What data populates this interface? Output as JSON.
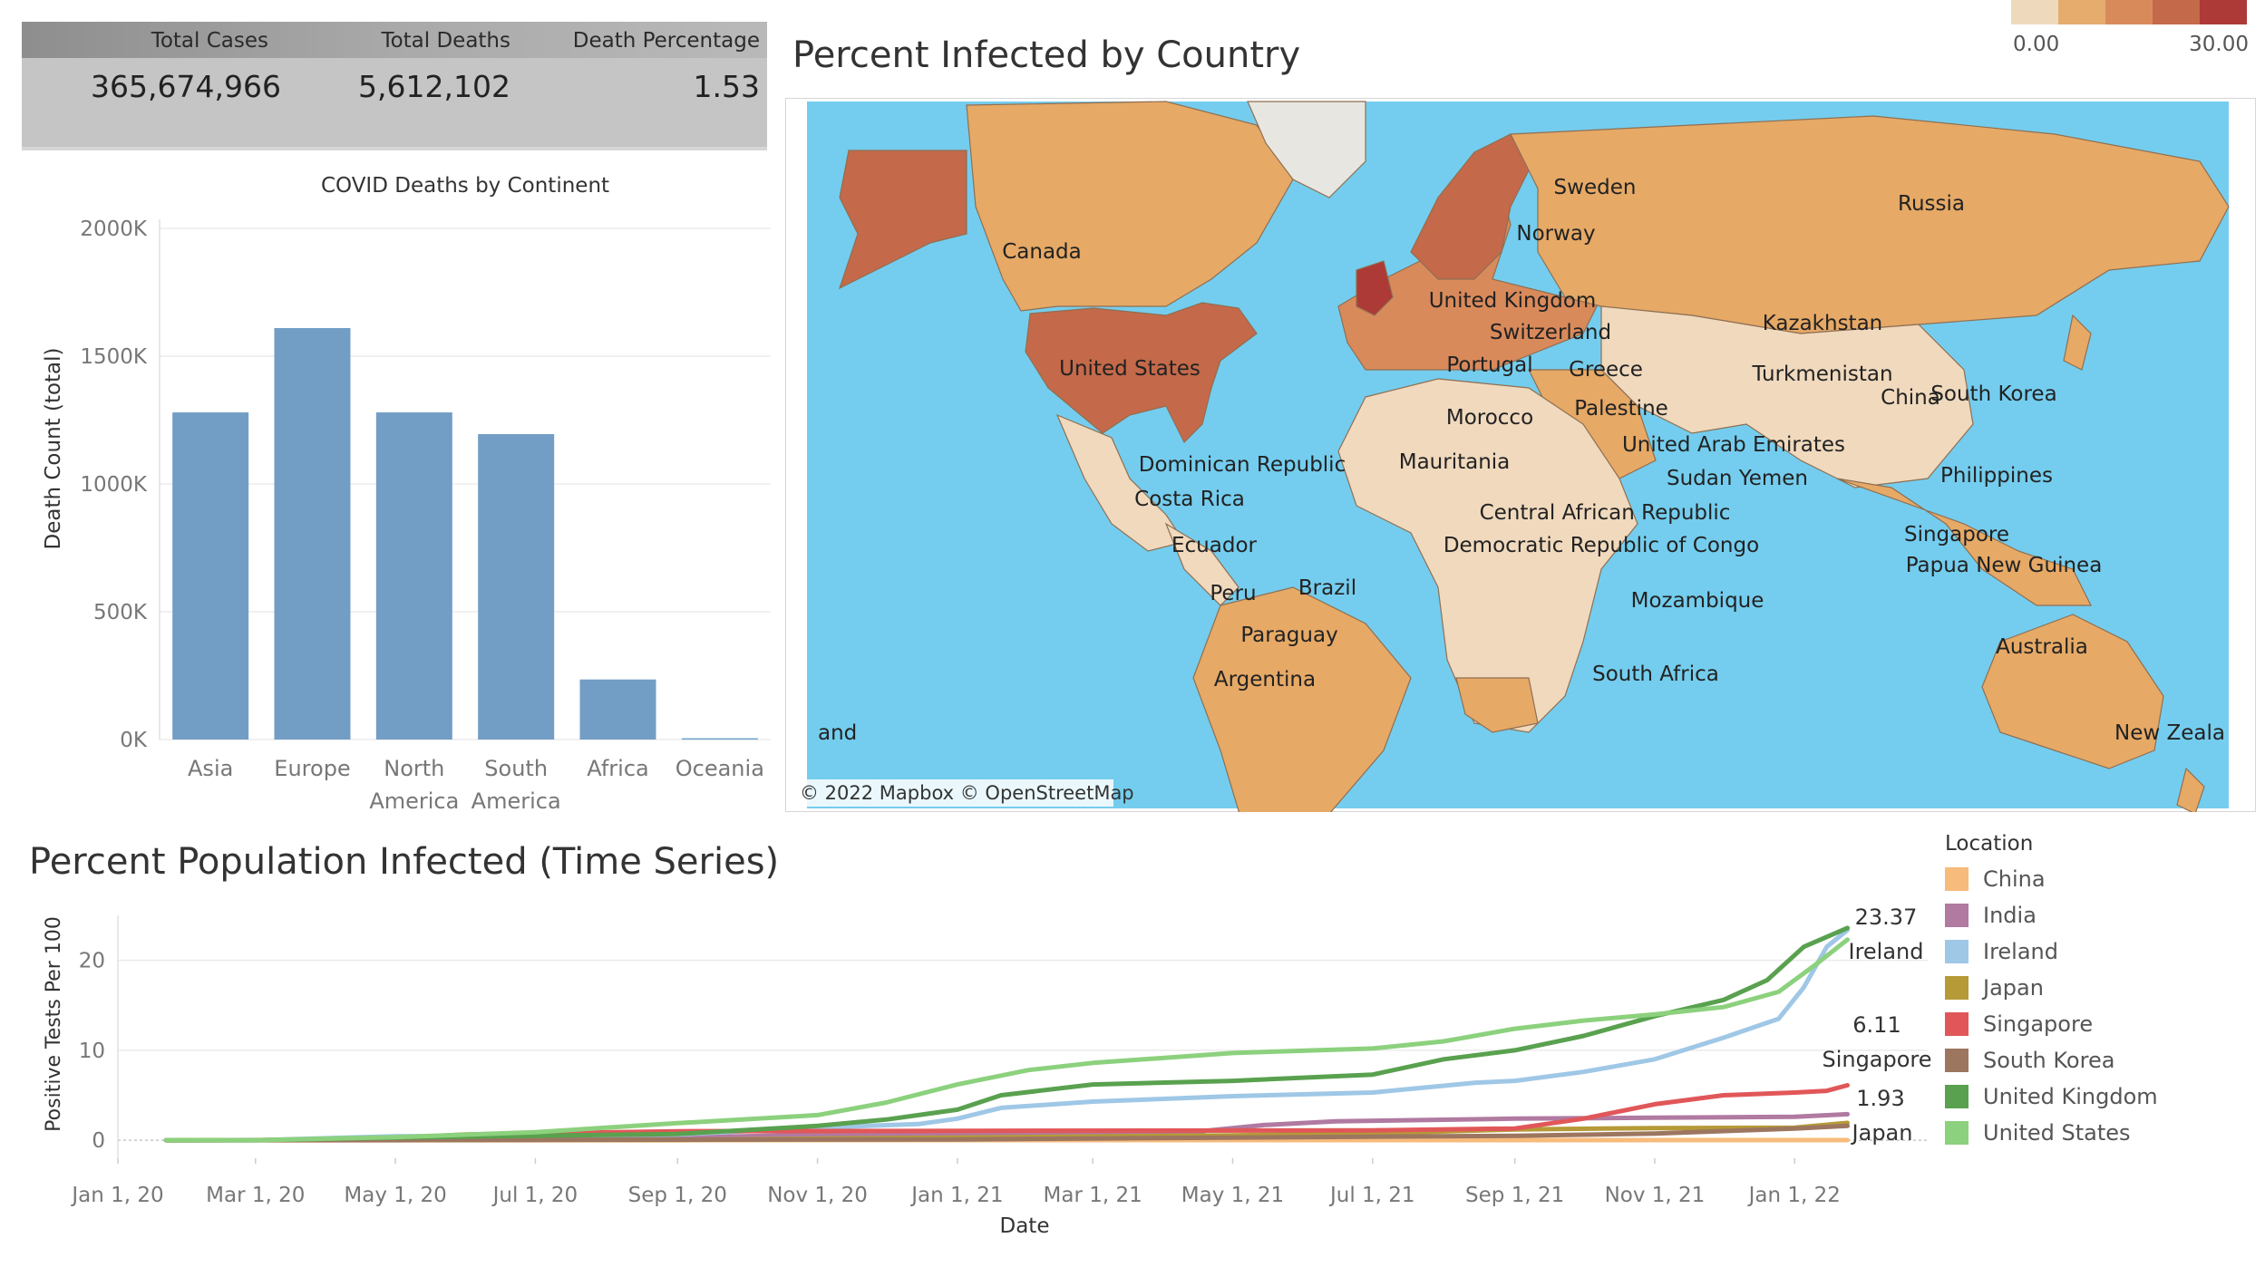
{
  "kpi": {
    "headers": [
      "Total Cases",
      "Total Deaths",
      "Death Percentage"
    ],
    "values": [
      "365,674,966",
      "5,612,102",
      "1.53"
    ]
  },
  "bar_chart_title": "COVID Deaths by Continent",
  "map": {
    "title": "Percent Infected by Country",
    "credit": "© 2022 Mapbox © OpenStreetMap",
    "scale_min": "0.00",
    "scale_max": "30.00",
    "scale_colors": [
      "#efd9bd",
      "#e5ac6e",
      "#d98a5b",
      "#c4694a",
      "#ad3a36"
    ],
    "labels": [
      "Canada",
      "United States",
      "Russia",
      "Sweden",
      "Norway",
      "United Kingdom",
      "Switzerland",
      "Kazakhstan",
      "Portugal",
      "Greece",
      "Turkmenistan",
      "China",
      "South Korea",
      "Morocco",
      "Palestine",
      "United Arab Emirates",
      "Mauritania",
      "Sudan Yemen",
      "Philippines",
      "Dominican Republic",
      "Costa Rica",
      "Central African Republic",
      "Democratic Republic of Congo",
      "Singapore",
      "Ecuador",
      "Papua New Guinea",
      "Peru",
      "Brazil",
      "Mozambique",
      "Paraguay",
      "Australia",
      "Argentina",
      "South Africa",
      "and",
      "New Zeala"
    ]
  },
  "timeseries": {
    "title": "Percent Population Infected (Time Series)",
    "legend_title": "Location",
    "end_labels": [
      {
        "value": "23.37",
        "name": "Ireland"
      },
      {
        "value": "6.11",
        "name": "Singapore"
      },
      {
        "value": "1.93",
        "name": "Japan"
      }
    ]
  },
  "chart_data": [
    {
      "type": "bar",
      "title": "COVID Deaths by Continent",
      "xlabel": "",
      "ylabel": "Death Count (total)",
      "categories": [
        [
          "Asia"
        ],
        [
          "Europe"
        ],
        [
          "North",
          "America"
        ],
        [
          "South",
          "America"
        ],
        [
          "Africa"
        ],
        [
          "Oceania"
        ]
      ],
      "values": [
        1280000,
        1610000,
        1280000,
        1195000,
        235000,
        5000
      ],
      "ylim": [
        0,
        2000000
      ],
      "yticks": [
        0,
        500000,
        1000000,
        1500000,
        2000000
      ],
      "ytick_labels": [
        "0K",
        "500K",
        "1000K",
        "1500K",
        "2000K"
      ],
      "color": "#729ec6",
      "grid": true
    },
    {
      "type": "line",
      "title": "Percent Population Infected (Time Series)",
      "xlabel": "Date",
      "ylabel": "Positive Tests Per 100",
      "xlim": [
        "2020-01-01",
        "2022-02-28"
      ],
      "ylim": [
        -2,
        25
      ],
      "yticks": [
        0,
        10,
        20
      ],
      "x_ticks": [
        "2020-01-01",
        "2020-03-01",
        "2020-05-01",
        "2020-07-01",
        "2020-09-01",
        "2020-11-01",
        "2021-01-01",
        "2021-03-01",
        "2021-05-01",
        "2021-07-01",
        "2021-09-01",
        "2021-11-01",
        "2022-01-01"
      ],
      "x_tick_labels": [
        "Jan 1, 20",
        "Mar 1, 20",
        "May 1, 20",
        "Jul 1, 20",
        "Sep 1, 20",
        "Nov 1, 20",
        "Jan 1, 21",
        "Mar 1, 21",
        "May 1, 21",
        "Jul 1, 21",
        "Sep 1, 21",
        "Nov 1, 21",
        "Jan 1, 22"
      ],
      "legend": "right",
      "series": [
        {
          "name": "China",
          "color": "#f7bb7b",
          "points": [
            [
              "2020-01-22",
              0.0
            ],
            [
              "2022-01-24",
              0.01
            ]
          ]
        },
        {
          "name": "India",
          "color": "#b07aa1",
          "points": [
            [
              "2020-01-22",
              0
            ],
            [
              "2020-05-01",
              0.0
            ],
            [
              "2020-07-01",
              0.05
            ],
            [
              "2020-09-01",
              0.3
            ],
            [
              "2020-11-01",
              0.6
            ],
            [
              "2021-01-01",
              0.75
            ],
            [
              "2021-03-01",
              0.82
            ],
            [
              "2021-04-15",
              0.95
            ],
            [
              "2021-05-15",
              1.7
            ],
            [
              "2021-06-15",
              2.1
            ],
            [
              "2021-09-01",
              2.4
            ],
            [
              "2021-11-01",
              2.5
            ],
            [
              "2022-01-01",
              2.6
            ],
            [
              "2022-01-24",
              2.9
            ]
          ]
        },
        {
          "name": "Ireland",
          "color": "#9fc7e6",
          "points": [
            [
              "2020-01-22",
              0
            ],
            [
              "2020-03-01",
              0.0
            ],
            [
              "2020-05-01",
              0.45
            ],
            [
              "2020-07-01",
              0.52
            ],
            [
              "2020-09-01",
              0.65
            ],
            [
              "2020-11-01",
              1.4
            ],
            [
              "2020-12-15",
              1.8
            ],
            [
              "2021-01-01",
              2.4
            ],
            [
              "2021-01-20",
              3.6
            ],
            [
              "2021-03-01",
              4.3
            ],
            [
              "2021-05-01",
              4.9
            ],
            [
              "2021-07-01",
              5.3
            ],
            [
              "2021-08-15",
              6.4
            ],
            [
              "2021-09-01",
              6.6
            ],
            [
              "2021-10-01",
              7.6
            ],
            [
              "2021-11-01",
              9.0
            ],
            [
              "2021-12-01",
              11.4
            ],
            [
              "2021-12-25",
              13.5
            ],
            [
              "2022-01-05",
              17.0
            ],
            [
              "2022-01-15",
              21.5
            ],
            [
              "2022-01-24",
              23.37
            ]
          ]
        },
        {
          "name": "Japan",
          "color": "#b59a37",
          "points": [
            [
              "2020-01-22",
              0
            ],
            [
              "2020-09-01",
              0.05
            ],
            [
              "2021-01-01",
              0.3
            ],
            [
              "2021-05-01",
              0.55
            ],
            [
              "2021-07-01",
              0.75
            ],
            [
              "2021-09-01",
              1.2
            ],
            [
              "2021-11-01",
              1.35
            ],
            [
              "2022-01-01",
              1.4
            ],
            [
              "2022-01-24",
              1.93
            ]
          ]
        },
        {
          "name": "Singapore",
          "color": "#e15759",
          "points": [
            [
              "2020-01-22",
              0
            ],
            [
              "2020-04-15",
              0.05
            ],
            [
              "2020-06-01",
              0.65
            ],
            [
              "2020-09-01",
              1.0
            ],
            [
              "2021-07-01",
              1.1
            ],
            [
              "2021-09-01",
              1.3
            ],
            [
              "2021-10-01",
              2.4
            ],
            [
              "2021-11-01",
              4.0
            ],
            [
              "2021-12-01",
              5.0
            ],
            [
              "2022-01-01",
              5.3
            ],
            [
              "2022-01-15",
              5.5
            ],
            [
              "2022-01-24",
              6.11
            ]
          ]
        },
        {
          "name": "South Korea",
          "color": "#9d7660",
          "points": [
            [
              "2020-01-22",
              0
            ],
            [
              "2021-01-01",
              0.1
            ],
            [
              "2021-09-01",
              0.5
            ],
            [
              "2021-11-01",
              0.75
            ],
            [
              "2022-01-01",
              1.3
            ],
            [
              "2022-01-24",
              1.6
            ]
          ]
        },
        {
          "name": "United Kingdom",
          "color": "#59a14f",
          "points": [
            [
              "2020-01-22",
              0
            ],
            [
              "2020-03-01",
              0.0
            ],
            [
              "2020-05-01",
              0.3
            ],
            [
              "2020-07-01",
              0.5
            ],
            [
              "2020-09-01",
              0.7
            ],
            [
              "2020-11-01",
              1.6
            ],
            [
              "2020-12-01",
              2.3
            ],
            [
              "2021-01-01",
              3.4
            ],
            [
              "2021-01-20",
              5.0
            ],
            [
              "2021-03-01",
              6.2
            ],
            [
              "2021-05-01",
              6.6
            ],
            [
              "2021-07-01",
              7.3
            ],
            [
              "2021-08-01",
              9.0
            ],
            [
              "2021-09-01",
              10.0
            ],
            [
              "2021-10-01",
              11.6
            ],
            [
              "2021-11-01",
              13.8
            ],
            [
              "2021-12-01",
              15.6
            ],
            [
              "2021-12-20",
              17.8
            ],
            [
              "2022-01-05",
              21.5
            ],
            [
              "2022-01-24",
              23.6
            ]
          ]
        },
        {
          "name": "United States",
          "color": "#8cd17d",
          "points": [
            [
              "2020-01-22",
              0
            ],
            [
              "2020-03-01",
              0.0
            ],
            [
              "2020-05-01",
              0.35
            ],
            [
              "2020-07-01",
              0.9
            ],
            [
              "2020-09-01",
              1.9
            ],
            [
              "2020-11-01",
              2.8
            ],
            [
              "2020-12-01",
              4.2
            ],
            [
              "2021-01-01",
              6.2
            ],
            [
              "2021-02-01",
              7.8
            ],
            [
              "2021-03-01",
              8.6
            ],
            [
              "2021-05-01",
              9.7
            ],
            [
              "2021-07-01",
              10.2
            ],
            [
              "2021-08-01",
              11.0
            ],
            [
              "2021-09-01",
              12.4
            ],
            [
              "2021-10-01",
              13.3
            ],
            [
              "2021-11-01",
              14.0
            ],
            [
              "2021-12-01",
              14.8
            ],
            [
              "2021-12-25",
              16.5
            ],
            [
              "2022-01-10",
              19.5
            ],
            [
              "2022-01-24",
              22.3
            ]
          ]
        }
      ]
    }
  ]
}
